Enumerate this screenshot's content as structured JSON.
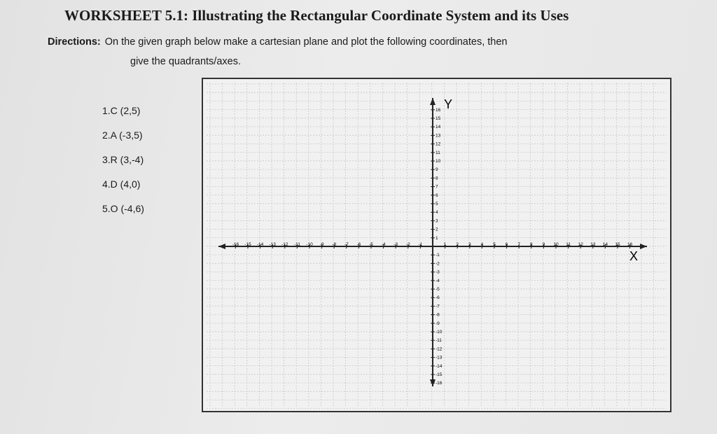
{
  "header": {
    "title": "WORKSHEET 5.1: Illustrating the Rectangular Coordinate System and its Uses"
  },
  "directions": {
    "label": "Directions:",
    "lines": [
      "On the given graph below make a cartesian plane and plot the following coordinates, then",
      "give the quadrants/axes."
    ]
  },
  "items": [
    "1.C (2,5)",
    "2.A (-3,5)",
    "3.R (3,-4)",
    "4.D (4,0)",
    "5.O (-4,6)"
  ],
  "graph": {
    "x_label": "X",
    "y_label": "Y",
    "x_ticks": [
      -16,
      -15,
      -14,
      -13,
      -12,
      -11,
      -10,
      -9,
      -8,
      -7,
      -6,
      -5,
      -4,
      -3,
      -2,
      -1,
      1,
      2,
      3,
      4,
      5,
      6,
      7,
      8,
      9,
      10,
      11,
      12,
      13,
      14,
      15,
      16
    ],
    "y_ticks": [
      16,
      15,
      14,
      13,
      12,
      11,
      10,
      9,
      8,
      7,
      6,
      5,
      4,
      3,
      2,
      1,
      -1,
      -2,
      -3,
      -4,
      -5,
      -6,
      -7,
      -8,
      -9,
      -10,
      -11,
      -12,
      -13,
      -14,
      -15,
      -16
    ]
  }
}
